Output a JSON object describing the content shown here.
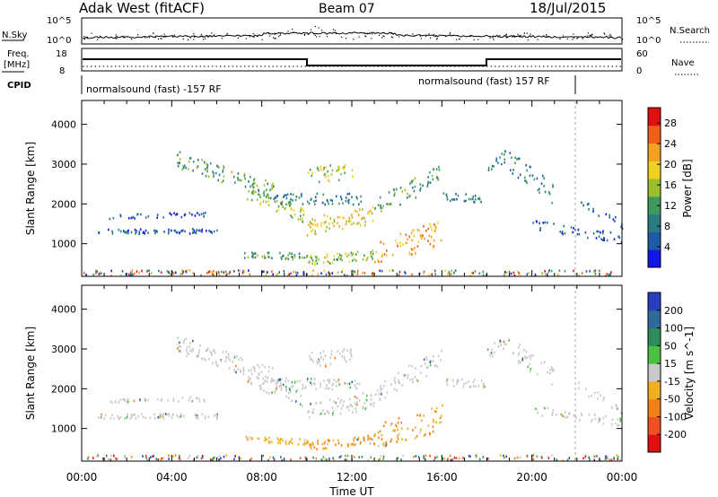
{
  "header": {
    "site": "Adak West (fitACF)",
    "beam": "Beam 07",
    "date": "18/Jul/2015"
  },
  "noise_panel": {
    "left_label": "N.Sky",
    "left_ticks": [
      "10^5",
      "10^0"
    ],
    "right_label": "N.Search",
    "right_ticks": [
      "10^5",
      "10^0"
    ]
  },
  "freq_panel": {
    "left_label_1": "Freq.",
    "left_label_2": "[MHz]",
    "left_ticks": [
      "18",
      "8"
    ],
    "right_label": "Nave",
    "right_ticks": [
      "60",
      "0"
    ]
  },
  "cpid_panel": {
    "label": "CPID",
    "programs": [
      "normalsound (fast) -157 RF",
      "normalsound (fast) 157 RF"
    ]
  },
  "x_axis": {
    "label": "Time UT",
    "ticks": [
      "00:00",
      "04:00",
      "08:00",
      "12:00",
      "16:00",
      "20:00",
      "00:00"
    ]
  },
  "chart_data": [
    {
      "type": "heatmap",
      "parameter": "Power",
      "ylabel": "Slant Range [km]",
      "ylim": [
        180,
        4600
      ],
      "yticks": [
        "1000",
        "2000",
        "3000",
        "4000"
      ],
      "xlim": [
        0,
        24
      ],
      "colorbar": {
        "label": "Power [dB]",
        "ticks": [
          "4",
          "8",
          "12",
          "16",
          "20",
          "24",
          "28"
        ],
        "range": [
          0,
          31
        ],
        "colors": [
          "#1515e6",
          "#1f5aa8",
          "#2c7a86",
          "#3e9a5c",
          "#9ac02e",
          "#f0d020",
          "#f5a020",
          "#f06018",
          "#e01010"
        ]
      }
    },
    {
      "type": "heatmap",
      "parameter": "Velocity",
      "ylabel": "Slant Range [km]",
      "ylim": [
        180,
        4600
      ],
      "yticks": [
        "1000",
        "2000",
        "3000",
        "4000"
      ],
      "xlim": [
        0,
        24
      ],
      "colorbar": {
        "label": "Velocity [m s^-1]",
        "ticks": [
          "200",
          "100",
          "50",
          "15",
          "-15",
          "-50",
          "-100",
          "-200"
        ],
        "colors": [
          "#2a3fc0",
          "#2f6a9a",
          "#2f8a5c",
          "#4cc040",
          "#c8c8c8",
          "#f0b020",
          "#f08018",
          "#f05020",
          "#e01010"
        ]
      }
    }
  ]
}
